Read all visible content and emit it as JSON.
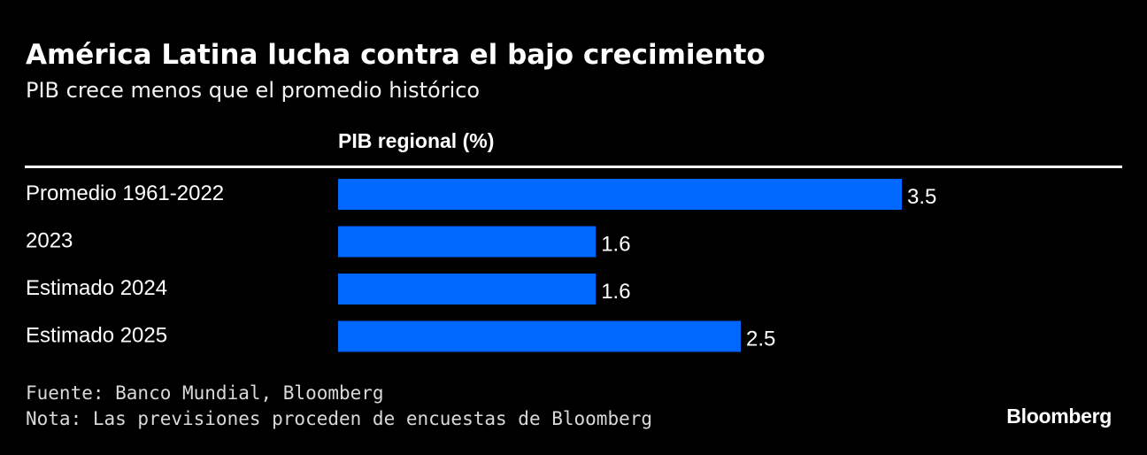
{
  "title": "América Latina lucha contra el bajo crecimiento",
  "subtitle": "PIB crece menos que el promedio histórico",
  "source": "Fuente: Banco Mundial, Bloomberg",
  "note": "Nota: Las previsiones proceden de encuestas de Bloomberg",
  "brand": "Bloomberg",
  "colors": {
    "bar": "#0068FF",
    "background": "#000000",
    "text": "#FFFFFF"
  },
  "chart_data": {
    "type": "bar",
    "orientation": "horizontal",
    "title": "América Latina lucha contra el bajo crecimiento",
    "subtitle": "PIB crece menos que el promedio histórico",
    "value_header": "PIB regional (%)",
    "categories": [
      "Promedio 1961-2022",
      "2023",
      "Estimado 2024",
      "Estimado 2025"
    ],
    "values": [
      3.5,
      1.6,
      1.6,
      2.5
    ],
    "value_labels": [
      "3.5",
      "1.6",
      "1.6",
      "2.5"
    ],
    "xlim": [
      0,
      3.5
    ],
    "grid": false,
    "legend": "none"
  }
}
